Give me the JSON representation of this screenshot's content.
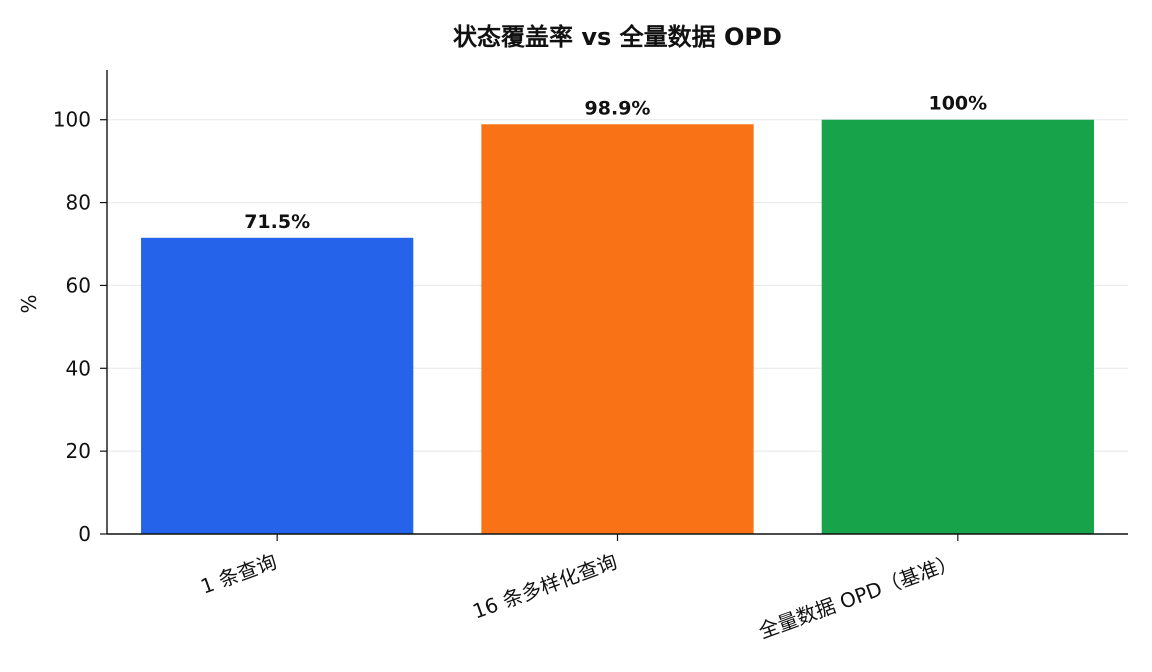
{
  "chart_data": {
    "type": "bar",
    "title": "状态覆盖率 vs 全量数据 OPD",
    "xlabel": "",
    "ylabel": "%",
    "categories": [
      "1 条查询",
      "16 条多样化查询",
      "全量数据 OPD（基准）"
    ],
    "values": [
      71.5,
      98.9,
      100
    ],
    "data_labels": [
      "71.5%",
      "98.9%",
      "100%"
    ],
    "colors": [
      "#2563eb",
      "#f97316",
      "#16a34a"
    ],
    "ylim": [
      0,
      112
    ],
    "yticks": [
      0,
      20,
      40,
      60,
      80,
      100
    ],
    "grid": true,
    "legend": "none"
  }
}
